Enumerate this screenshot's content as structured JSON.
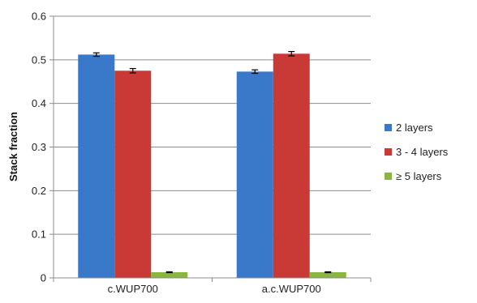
{
  "chart_data": {
    "type": "bar",
    "title": "",
    "xlabel": "",
    "ylabel": "Stack fraction",
    "ylim": [
      0,
      0.6
    ],
    "yticks": [
      "0",
      "0.1",
      "0.2",
      "0.3",
      "0.4",
      "0.5",
      "0.6"
    ],
    "grid": "horizontal",
    "legend_position": "right",
    "categories": [
      "c.WUP700",
      "a.c.WUP700"
    ],
    "series": [
      {
        "name": "2 layers",
        "color": "#3a78c9",
        "values": [
          0.512,
          0.473
        ],
        "errors": [
          0.004,
          0.004
        ]
      },
      {
        "name": "3 - 4 layers",
        "color": "#c93a36",
        "values": [
          0.475,
          0.514
        ],
        "errors": [
          0.005,
          0.005
        ]
      },
      {
        "name": "≥ 5 layers",
        "color": "#8ab53e",
        "values": [
          0.013,
          0.013
        ],
        "errors": [
          0.001,
          0.001
        ]
      }
    ]
  }
}
